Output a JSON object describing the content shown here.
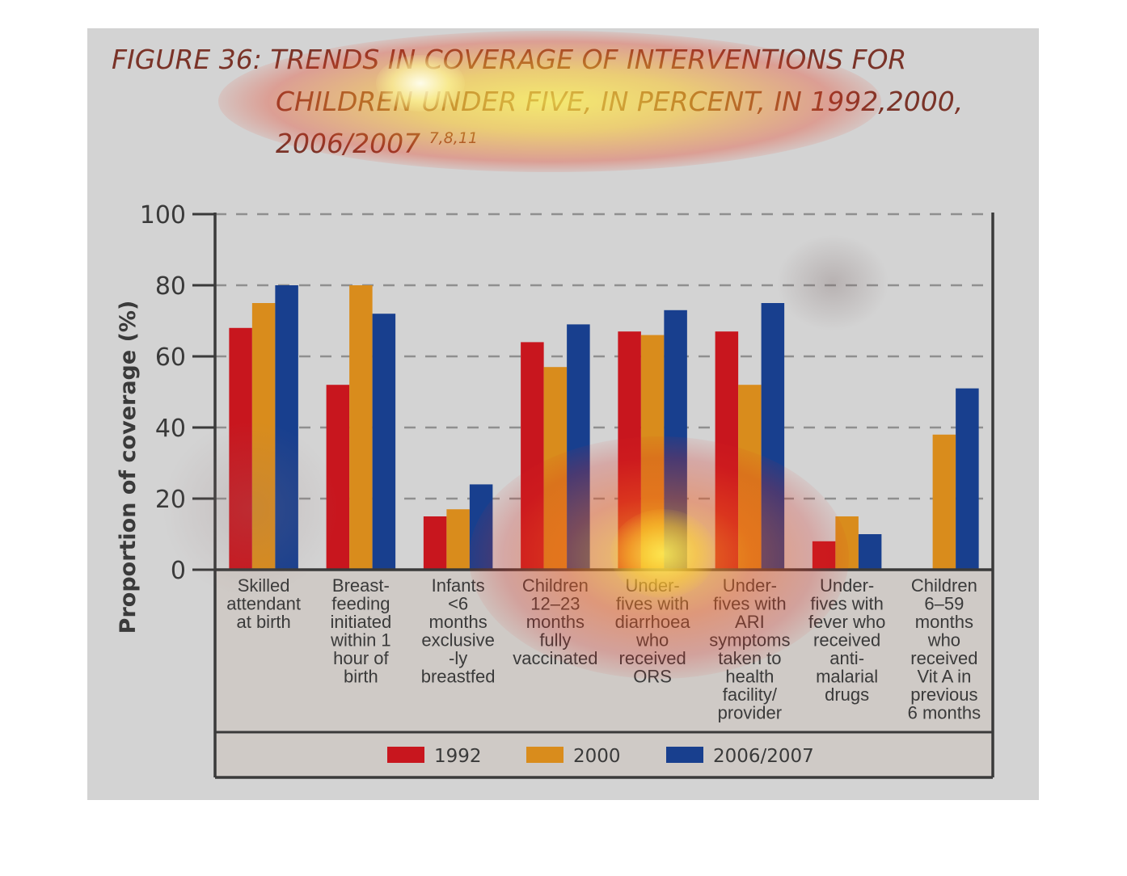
{
  "chart_data": {
    "type": "bar",
    "title_prefix": "FIGURE 36:",
    "title": "TRENDS IN COVERAGE OF INTERVENTIONS FOR CHILDREN UNDER FIVE, IN PERCENT, IN 1992,2000, 2006/2007",
    "title_line1": "TRENDS IN COVERAGE OF INTERVENTIONS FOR",
    "title_line2": "CHILDREN UNDER FIVE, IN PERCENT, IN 1992,2000,",
    "title_line3": "2006/2007",
    "title_refs": "7,8,11",
    "ylabel": "Proportion of coverage (%)",
    "ylim": [
      0,
      100
    ],
    "yticks": [
      "0",
      "20",
      "40",
      "60",
      "80",
      "100"
    ],
    "grid": true,
    "legend_position": "bottom",
    "categories": [
      [
        "Skilled",
        "attendant",
        "at birth"
      ],
      [
        "Breast-",
        "feeding",
        "initiated",
        "within 1",
        "hour of",
        "birth"
      ],
      [
        "Infants",
        "<6",
        "months",
        "exclusive",
        "-ly",
        "breastfed"
      ],
      [
        "Children",
        "12–23",
        "months",
        "fully",
        "vaccinated"
      ],
      [
        "Under-",
        "fives with",
        "diarrhoea",
        "who",
        "received",
        "ORS"
      ],
      [
        "Under-",
        "fives with",
        "ARI",
        "symptoms",
        "taken to",
        "health",
        "facility/",
        "provider"
      ],
      [
        "Under-",
        "fives with",
        "fever who",
        "received",
        "anti-",
        "malarial",
        "drugs"
      ],
      [
        "Children",
        "6–59",
        "months",
        "who",
        "received",
        "Vit A in",
        "previous",
        "6 months"
      ]
    ],
    "series": [
      {
        "name": "1992",
        "color": "#c8161e",
        "values": [
          68,
          52,
          15,
          64,
          67,
          67,
          8,
          null
        ]
      },
      {
        "name": "2000",
        "color": "#d98c1c",
        "values": [
          75,
          80,
          17,
          57,
          66,
          52,
          15,
          38
        ]
      },
      {
        "name": "2006/2007",
        "color": "#183f8e",
        "values": [
          80,
          72,
          24,
          69,
          73,
          75,
          10,
          51
        ]
      }
    ]
  }
}
